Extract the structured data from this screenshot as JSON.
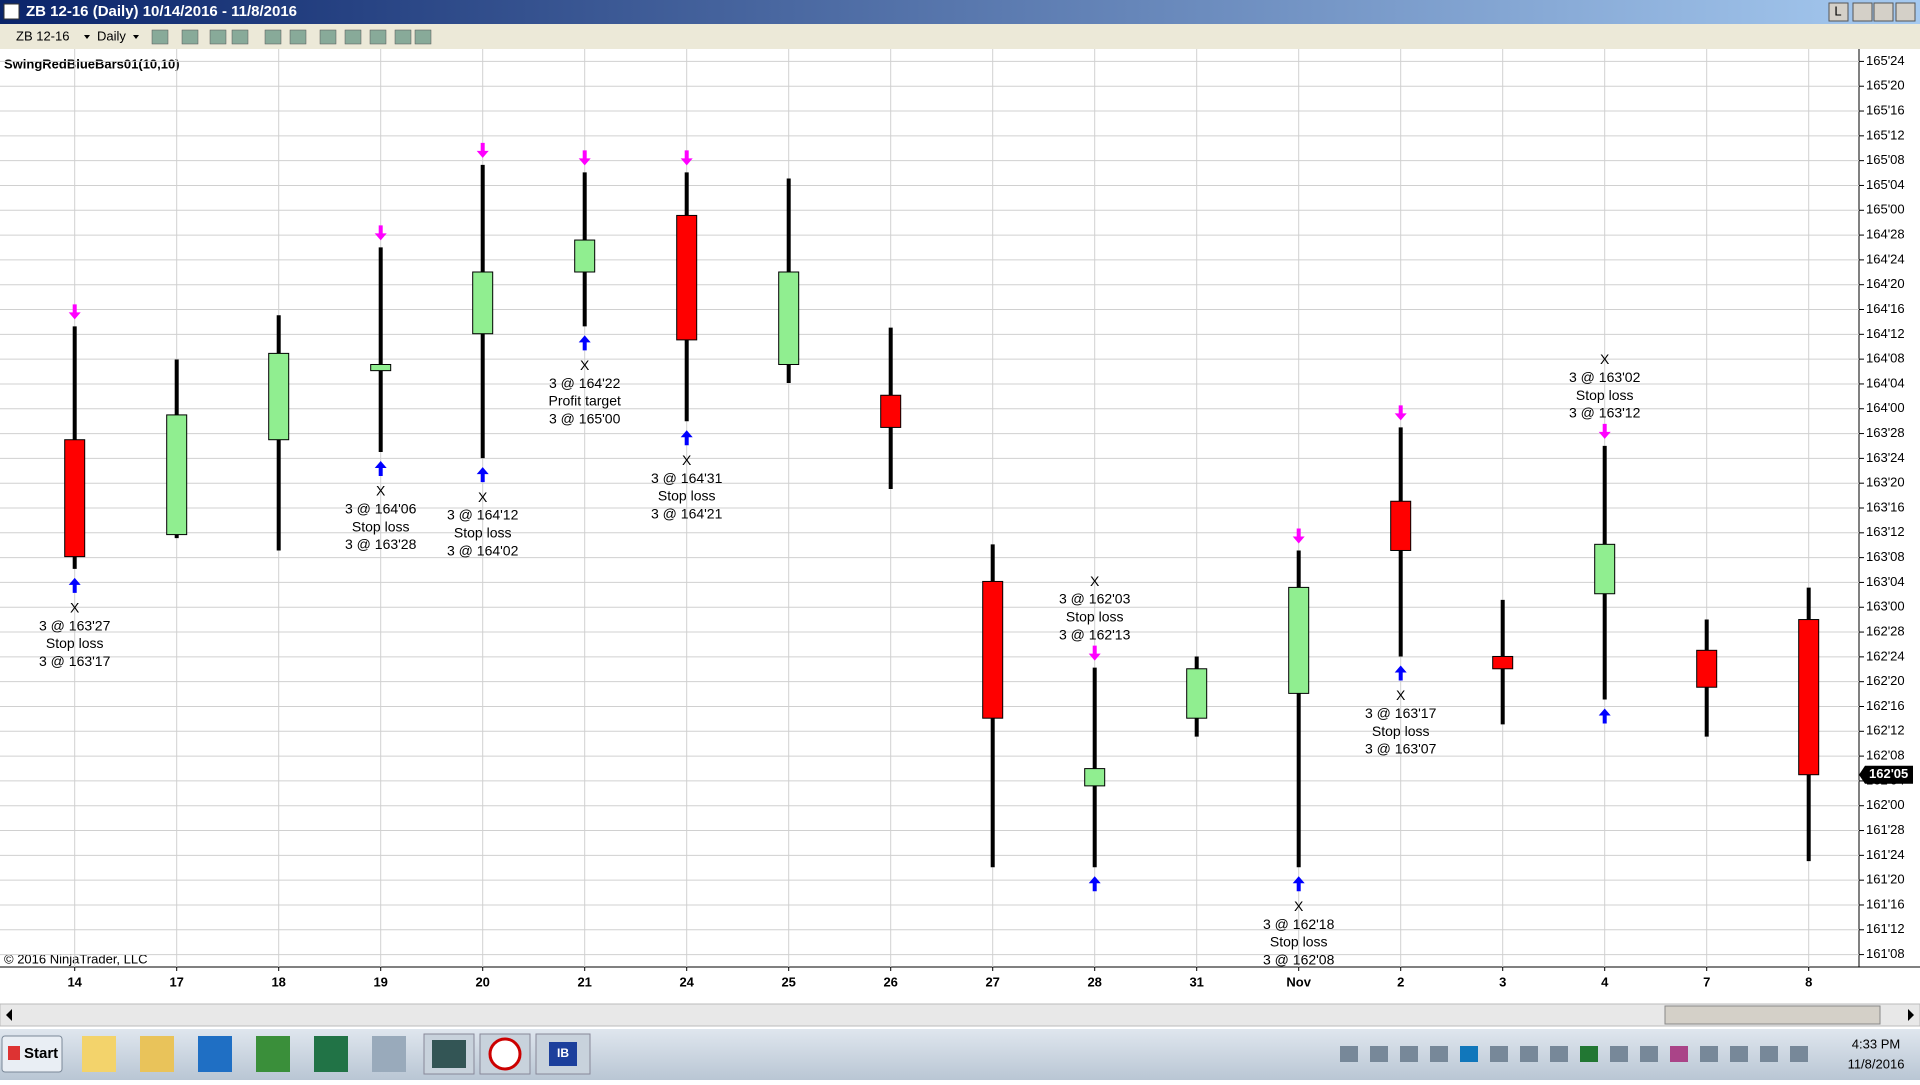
{
  "window": {
    "title": "ZB 12-16 (Daily)  10/14/2016 - 11/8/2016",
    "instrument": "ZB 12-16",
    "period": "Daily",
    "button": "L"
  },
  "chart_data": {
    "type": "candlestick",
    "indicator": "SwingRedBlueBars01(10,10)",
    "copyright": "© 2016 NinjaTrader, LLC",
    "categories": [
      "14",
      "17",
      "18",
      "19",
      "20",
      "21",
      "24",
      "25",
      "26",
      "27",
      "28",
      "31",
      "Nov",
      "2",
      "3",
      "4",
      "7",
      "8"
    ],
    "open": [
      163.844,
      163.366,
      163.844,
      164.192,
      164.378,
      164.689,
      164.974,
      164.223,
      164.068,
      163.13,
      162.1,
      162.441,
      162.566,
      163.534,
      162.752,
      163.068,
      162.783,
      162.938
    ],
    "high": [
      164.415,
      164.248,
      164.471,
      164.813,
      165.229,
      165.191,
      165.191,
      165.16,
      164.409,
      163.317,
      162.696,
      162.752,
      163.286,
      163.906,
      163.037,
      163.813,
      162.938,
      163.099
    ],
    "low": [
      163.193,
      163.348,
      163.286,
      163.782,
      163.751,
      164.415,
      163.937,
      164.13,
      163.596,
      161.69,
      161.69,
      162.348,
      161.69,
      162.752,
      162.41,
      162.535,
      162.348,
      161.721
    ],
    "close": [
      163.255,
      163.969,
      164.279,
      164.223,
      164.689,
      164.85,
      164.347,
      164.689,
      163.906,
      162.441,
      162.187,
      162.69,
      163.1,
      163.286,
      162.69,
      163.317,
      162.597,
      162.15625
    ],
    "up_color": "#90ee90",
    "down_color": "#ff0000",
    "last_price": 162.15625,
    "last_price_label": "162'05",
    "annotations": [
      [
        "X",
        "3 @ 163'27",
        "Stop loss",
        "3 @ 163'17"
      ],
      null,
      null,
      [
        "X",
        "3 @ 164'06",
        "Stop loss",
        "3 @ 163'28"
      ],
      [
        "X",
        "3 @ 164'12",
        "Stop loss",
        "3 @ 164'02"
      ],
      [
        "X",
        "3 @ 164'22",
        "Profit target",
        "3 @ 165'00"
      ],
      [
        "X",
        "3 @ 164'31",
        "Stop loss",
        "3 @ 164'21"
      ],
      null,
      null,
      null,
      [
        "X",
        "3 @ 162'03",
        "Stop loss",
        "3 @ 162'13"
      ],
      null,
      [
        "X",
        "3 @ 162'18",
        "Stop loss",
        "3 @ 162'08"
      ],
      [
        "X",
        "3 @ 163'17",
        "Stop loss",
        "3 @ 163'07"
      ],
      null,
      [
        "X",
        "3 @ 163'02",
        "Stop loss",
        "3 @ 163'12"
      ],
      null,
      null
    ],
    "ylim": [
      161.1875,
      165.8125
    ],
    "yticks": [
      {
        "value": 161.25,
        "label": "161'08"
      },
      {
        "value": 161.375,
        "label": "161'12"
      },
      {
        "value": 161.5,
        "label": "161'16"
      },
      {
        "value": 161.625,
        "label": "161'20"
      },
      {
        "value": 161.75,
        "label": "161'24"
      },
      {
        "value": 161.875,
        "label": "161'28"
      },
      {
        "value": 162,
        "label": "162'00"
      },
      {
        "value": 162.125,
        "label": "162'04"
      },
      {
        "value": 162.25,
        "label": "162'08"
      },
      {
        "value": 162.375,
        "label": "162'12"
      },
      {
        "value": 162.5,
        "label": "162'16"
      },
      {
        "value": 162.625,
        "label": "162'20"
      },
      {
        "value": 162.75,
        "label": "162'24"
      },
      {
        "value": 162.875,
        "label": "162'28"
      },
      {
        "value": 163,
        "label": "163'00"
      },
      {
        "value": 163.125,
        "label": "163'04"
      },
      {
        "value": 163.25,
        "label": "163'08"
      },
      {
        "value": 163.375,
        "label": "163'12"
      },
      {
        "value": 163.5,
        "label": "163'16"
      },
      {
        "value": 163.625,
        "label": "163'20"
      },
      {
        "value": 163.75,
        "label": "163'24"
      },
      {
        "value": 163.875,
        "label": "163'28"
      },
      {
        "value": 164,
        "label": "164'00"
      },
      {
        "value": 164.125,
        "label": "164'04"
      },
      {
        "value": 164.25,
        "label": "164'08"
      },
      {
        "value": 164.375,
        "label": "164'12"
      },
      {
        "value": 164.5,
        "label": "164'16"
      },
      {
        "value": 164.625,
        "label": "164'20"
      },
      {
        "value": 164.75,
        "label": "164'24"
      },
      {
        "value": 164.875,
        "label": "164'28"
      },
      {
        "value": 165,
        "label": "165'00"
      },
      {
        "value": 165.125,
        "label": "165'04"
      },
      {
        "value": 165.25,
        "label": "165'08"
      },
      {
        "value": 165.375,
        "label": "165'12"
      },
      {
        "value": 165.5,
        "label": "165'16"
      },
      {
        "value": 165.625,
        "label": "165'20"
      },
      {
        "value": 165.75,
        "label": "165'24"
      }
    ],
    "grid": true
  },
  "taskbar": {
    "start": "Start",
    "app": "IB",
    "time": "4:33 PM",
    "date": "11/8/2016"
  }
}
